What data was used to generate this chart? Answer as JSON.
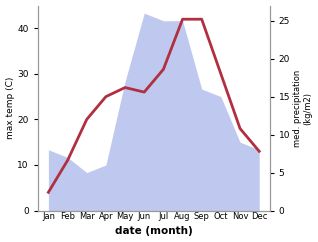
{
  "months": [
    "Jan",
    "Feb",
    "Mar",
    "Apr",
    "May",
    "Jun",
    "Jul",
    "Aug",
    "Sep",
    "Oct",
    "Nov",
    "Dec"
  ],
  "temperature": [
    4,
    11,
    20,
    25,
    27,
    26,
    31,
    42,
    42,
    30,
    18,
    13
  ],
  "precipitation_kg": [
    8,
    7,
    5,
    6,
    17,
    26,
    25,
    25,
    16,
    15,
    9,
    8
  ],
  "temp_color": "#b03040",
  "precip_color": "#b8c4ee",
  "ylabel_left": "max temp (C)",
  "ylabel_right": "med. precipitation\n(kg/m2)",
  "xlabel": "date (month)",
  "ylim_left": [
    0,
    45
  ],
  "ylim_right": [
    0,
    27
  ],
  "yticks_left": [
    0,
    10,
    20,
    30,
    40
  ],
  "yticks_right": [
    0,
    5,
    10,
    15,
    20,
    25
  ],
  "precip_scale": 1.7,
  "background_color": "#ffffff",
  "line_width": 2.0
}
